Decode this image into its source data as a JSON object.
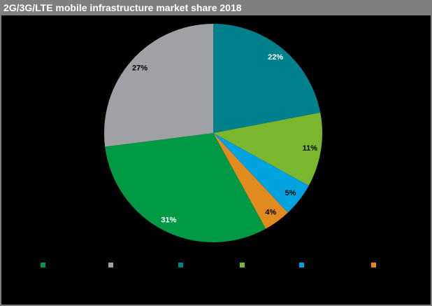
{
  "header": {
    "title": "2G/3G/LTE mobile infrastructure market share 2018",
    "background_color": "#7F7F7F",
    "text_color": "#FFFFFF"
  },
  "canvas": {
    "background_color": "#000000",
    "border_color": "#808080"
  },
  "chart_data": {
    "type": "pie",
    "title": "2G/3G/LTE mobile infrastructure market share 2018",
    "unit": "percent",
    "start_angle_deg": 0,
    "direction": "clockwise",
    "slices": [
      {
        "value": 22,
        "label": "22%",
        "color": "#00808C",
        "label_color": "#FFFFFF"
      },
      {
        "value": 11,
        "label": "11%",
        "color": "#7AB62E",
        "label_color": "#000000"
      },
      {
        "value": 5,
        "label": "5%",
        "color": "#00A3E0",
        "label_color": "#000000"
      },
      {
        "value": 4,
        "label": "4%",
        "color": "#E18A1E",
        "label_color": "#000000"
      },
      {
        "value": 31,
        "label": "31%",
        "color": "#009A44",
        "label_color": "#FFFFFF"
      },
      {
        "value": 27,
        "label": "27%",
        "color": "#A0A1A4",
        "label_color": "#000000"
      }
    ],
    "legend_position": "bottom",
    "legend_swatch_colors": [
      "#009A44",
      "#A0A1A4",
      "#00808C",
      "#7AB62E",
      "#00A3E0",
      "#E18A1E"
    ]
  }
}
